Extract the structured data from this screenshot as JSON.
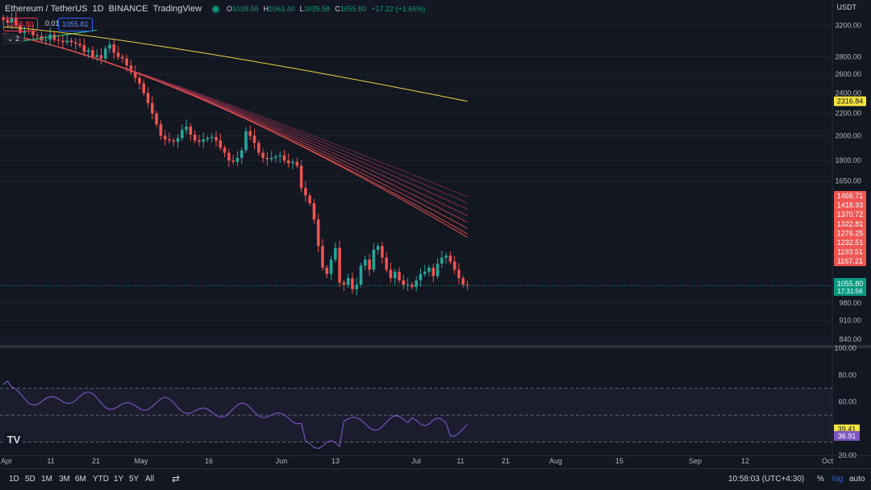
{
  "header": {
    "symbol": "Ethereum / TetherUS",
    "interval": "1D",
    "exchange": "BINANCE",
    "source": "TradingView",
    "ohlc": {
      "o_label": "O",
      "o": "1038.58",
      "h_label": "H",
      "h": "1063.40",
      "l_label": "L",
      "l": "1035.58",
      "c_label": "C",
      "c": "1055.80",
      "change": "+17.22 (+1.66%)"
    },
    "sell_price": "1055.80",
    "spread": "0.01",
    "buy_price": "1055.81",
    "indicator_count": "2",
    "currency": "USDT"
  },
  "price_axis": {
    "ticks": [
      "3200.00",
      "2800.00",
      "2600.00",
      "2400.00",
      "2200.00",
      "2000.00",
      "1800.00",
      "1650.00",
      "980.00",
      "910.00",
      "840.00"
    ],
    "ema200_label": "2316.84",
    "ribbon_labels": [
      "1466.71",
      "1418.93",
      "1370.72",
      "1322.81",
      "1276.25",
      "1232.51",
      "1193.51",
      "1167.21"
    ],
    "last_price": "1055.80",
    "countdown": "17:31:56"
  },
  "rsi_axis": {
    "ticks": [
      "100.00",
      "80.00",
      "60.00",
      "20.00"
    ],
    "rsi_ma": "39.41",
    "rsi": "36.91"
  },
  "time_axis": {
    "labels": [
      "Apr",
      "11",
      "21",
      "May",
      "16",
      "Jun",
      "13",
      "Jul",
      "11",
      "21",
      "Aug",
      "15",
      "Sep",
      "12",
      "Oct"
    ]
  },
  "bottom_bar": {
    "ranges": [
      "1D",
      "5D",
      "1M",
      "3M",
      "6M",
      "YTD",
      "1Y",
      "5Y",
      "All"
    ],
    "clock": "10:58:03 (UTC+4:30)",
    "percent": "%",
    "log": "log",
    "auto": "auto"
  },
  "colors": {
    "background": "#131722",
    "up": "#26a69a",
    "down": "#ef5350",
    "ema200": "#e8d23c",
    "rsi": "#7e57c2",
    "last_price_bg": "#089981"
  },
  "chart_data": {
    "type": "candlestick",
    "scale": "log",
    "price_range": [
      820,
      3400
    ],
    "candles_close": [
      3280,
      3240,
      3300,
      3200,
      3100,
      3130,
      3120,
      3070,
      3060,
      3000,
      3010,
      3080,
      3010,
      3000,
      2980,
      3000,
      2980,
      2960,
      2940,
      2860,
      2880,
      2800,
      2820,
      2780,
      2900,
      2950,
      2850,
      2800,
      2780,
      2700,
      2620,
      2560,
      2500,
      2400,
      2300,
      2200,
      2100,
      2000,
      1970,
      1960,
      1950,
      1980,
      2050,
      2080,
      2010,
      1960,
      1950,
      1970,
      1980,
      1990,
      1960,
      1900,
      1860,
      1800,
      1790,
      1820,
      1880,
      2040,
      2000,
      1940,
      1860,
      1820,
      1810,
      1820,
      1830,
      1840,
      1800,
      1780,
      1790,
      1760,
      1600,
      1550,
      1500,
      1400,
      1250,
      1140,
      1110,
      1180,
      1240,
      1070,
      1060,
      1090,
      1040,
      1060,
      1150,
      1180,
      1130,
      1230,
      1250,
      1190,
      1130,
      1090,
      1120,
      1080,
      1060,
      1060,
      1050,
      1080,
      1110,
      1120,
      1140,
      1100,
      1160,
      1190,
      1200,
      1170,
      1130,
      1090,
      1060,
      1056
    ],
    "ema200": {
      "start": 3180,
      "end": 2316.84
    },
    "ribbon_end": [
      1466.71,
      1418.93,
      1370.72,
      1322.81,
      1276.25,
      1232.51,
      1193.51,
      1167.21
    ],
    "rsi_range": [
      20,
      100
    ],
    "rsi_levels": [
      70,
      50,
      30
    ]
  }
}
